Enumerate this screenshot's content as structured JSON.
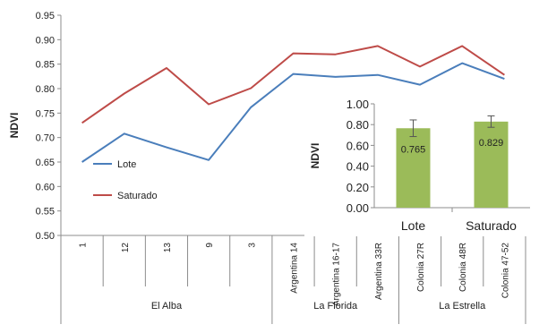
{
  "chart_data": [
    {
      "type": "line",
      "ylabel": "NDVI",
      "ylim": [
        0.5,
        0.95
      ],
      "yticks": [
        "0.50",
        "0.55",
        "0.60",
        "0.65",
        "0.70",
        "0.75",
        "0.80",
        "0.85",
        "0.90",
        "0.95"
      ],
      "categories": [
        "1",
        "12",
        "13",
        "9",
        "3",
        "Argentina 14",
        "Argentina 16-17",
        "Argentina 33R",
        "Colonia 27R",
        "Colonia 48R",
        "Colonia 47-52"
      ],
      "groups": [
        {
          "label": "El Alba",
          "count": 5
        },
        {
          "label": "La Florida",
          "count": 3
        },
        {
          "label": "La Estrella",
          "count": 3
        }
      ],
      "series": [
        {
          "name": "Lote",
          "color": "#4a7ebb",
          "values": [
            0.65,
            0.708,
            0.68,
            0.654,
            0.762,
            0.83,
            0.824,
            0.828,
            0.808,
            0.852,
            0.82
          ]
        },
        {
          "name": "Saturado",
          "color": "#be4b48",
          "values": [
            0.73,
            0.79,
            0.842,
            0.768,
            0.801,
            0.872,
            0.87,
            0.887,
            0.845,
            0.887,
            0.828
          ]
        }
      ],
      "grid": false,
      "legend": "left"
    },
    {
      "type": "bar",
      "ylabel": "NDVI",
      "ylim": [
        0,
        1
      ],
      "yticks": [
        "0.00",
        "0.20",
        "0.40",
        "0.60",
        "0.80",
        "1.00"
      ],
      "categories": [
        "Lote",
        "Saturado"
      ],
      "values": [
        0.765,
        0.829
      ],
      "value_labels": [
        "0.765",
        "0.829"
      ],
      "errors": [
        0.08,
        0.055
      ],
      "color": "#9bbb59",
      "grid": false
    }
  ]
}
